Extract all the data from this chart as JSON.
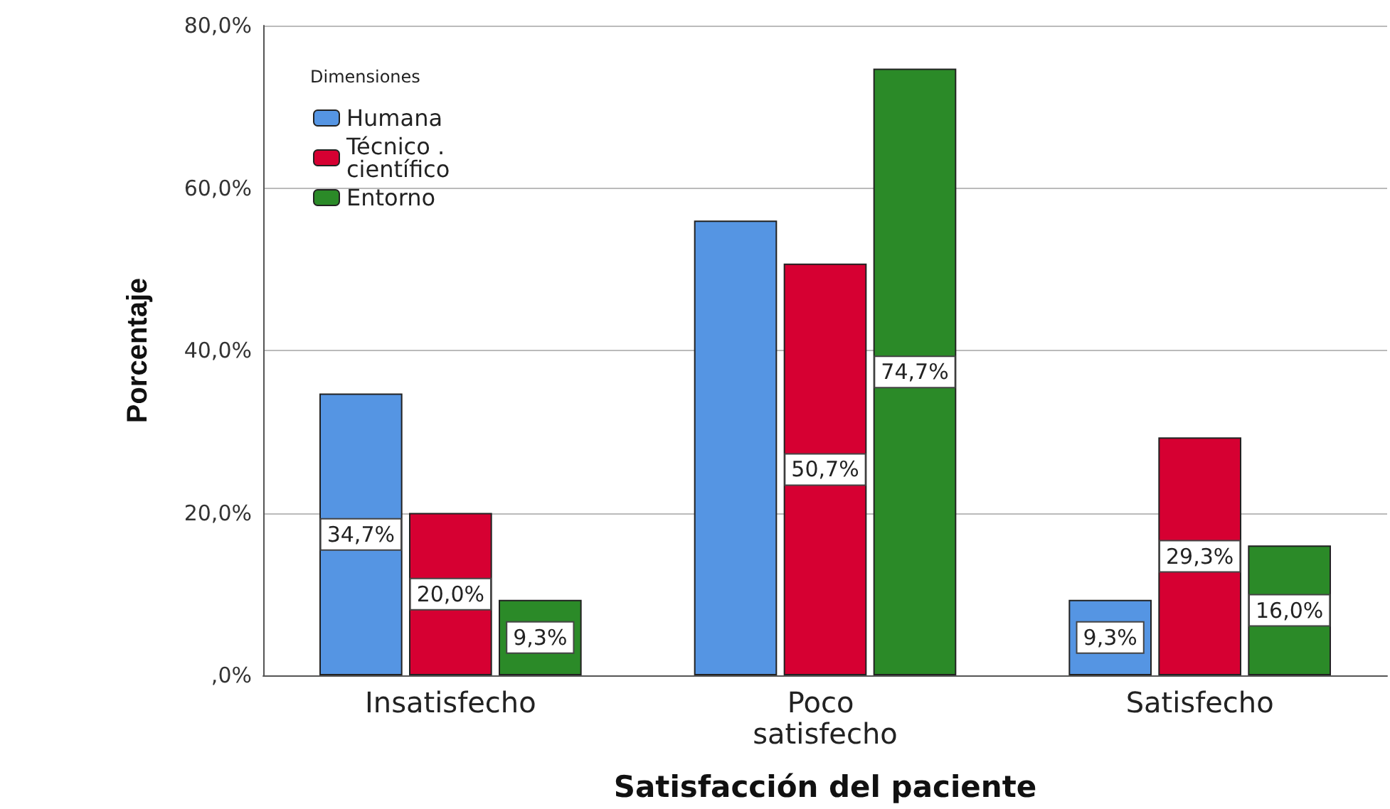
{
  "chart_data": {
    "type": "bar",
    "xlabel": "Satisfacción del paciente",
    "ylabel": "Porcentaje",
    "legend_title": "Dimensiones",
    "categories": [
      "Insatisfecho",
      "Poco satisfecho",
      "Satisfecho"
    ],
    "series": [
      {
        "name": "Humana",
        "color": "#5595e3",
        "values": [
          34.7,
          56.0,
          9.3
        ],
        "value_labels": [
          "34,7%",
          null,
          "9,3%"
        ]
      },
      {
        "name": "Técnico . científico",
        "color": "#d60032",
        "values": [
          20.0,
          50.7,
          29.3
        ],
        "value_labels": [
          "20,0%",
          "50,7%",
          "29,3%"
        ]
      },
      {
        "name": "Entorno",
        "color": "#2b8a28",
        "values": [
          9.3,
          74.7,
          16.0
        ],
        "value_labels": [
          "9,3%",
          "74,7%",
          "16,0%"
        ]
      }
    ],
    "ylim": [
      0,
      80
    ],
    "yticks": [
      {
        "value": 0,
        "label": ",0%"
      },
      {
        "value": 20,
        "label": "20,0%"
      },
      {
        "value": 40,
        "label": "40,0%"
      },
      {
        "value": 60,
        "label": "60,0%"
      },
      {
        "value": 80,
        "label": "80,0%"
      }
    ],
    "grid": "y",
    "legend": "top left"
  }
}
